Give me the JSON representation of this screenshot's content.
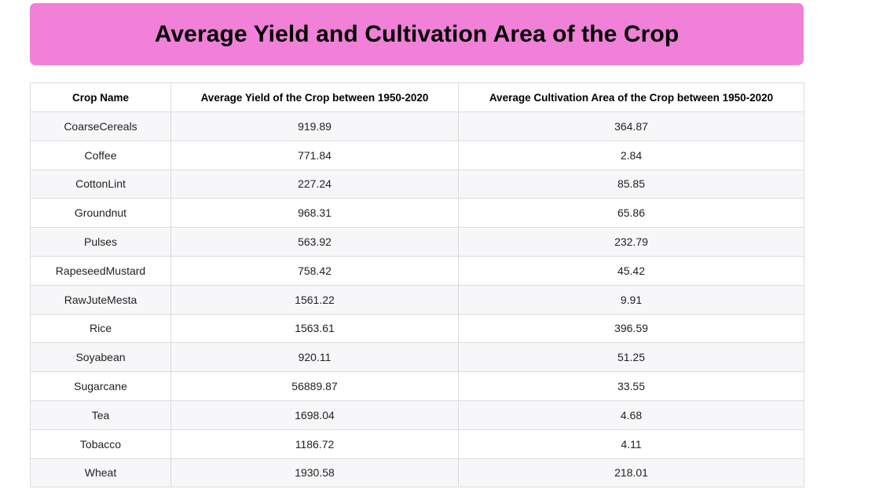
{
  "title": "Average Yield and Cultivation Area of the Crop",
  "table": {
    "headers": [
      "Crop Name",
      "Average Yield of the Crop between 1950-2020",
      "Average Cultivation Area of the Crop between 1950-2020"
    ],
    "rows": [
      [
        "CoarseCereals",
        "919.89",
        "364.87"
      ],
      [
        "Coffee",
        "771.84",
        "2.84"
      ],
      [
        "CottonLint",
        "227.24",
        "85.85"
      ],
      [
        "Groundnut",
        "968.31",
        "65.86"
      ],
      [
        "Pulses",
        "563.92",
        "232.79"
      ],
      [
        "RapeseedMustard",
        "758.42",
        "45.42"
      ],
      [
        "RawJuteMesta",
        "1561.22",
        "9.91"
      ],
      [
        "Rice",
        "1563.61",
        "396.59"
      ],
      [
        "Soyabean",
        "920.11",
        "51.25"
      ],
      [
        "Sugarcane",
        "56889.87",
        "33.55"
      ],
      [
        "Tea",
        "1698.04",
        "4.68"
      ],
      [
        "Tobacco",
        "1186.72",
        "4.11"
      ],
      [
        "Wheat",
        "1930.58",
        "218.01"
      ]
    ]
  },
  "colors": {
    "banner_background": "#f080d8",
    "striped_row": "#f7f7f9",
    "border": "#dcdcdc"
  }
}
